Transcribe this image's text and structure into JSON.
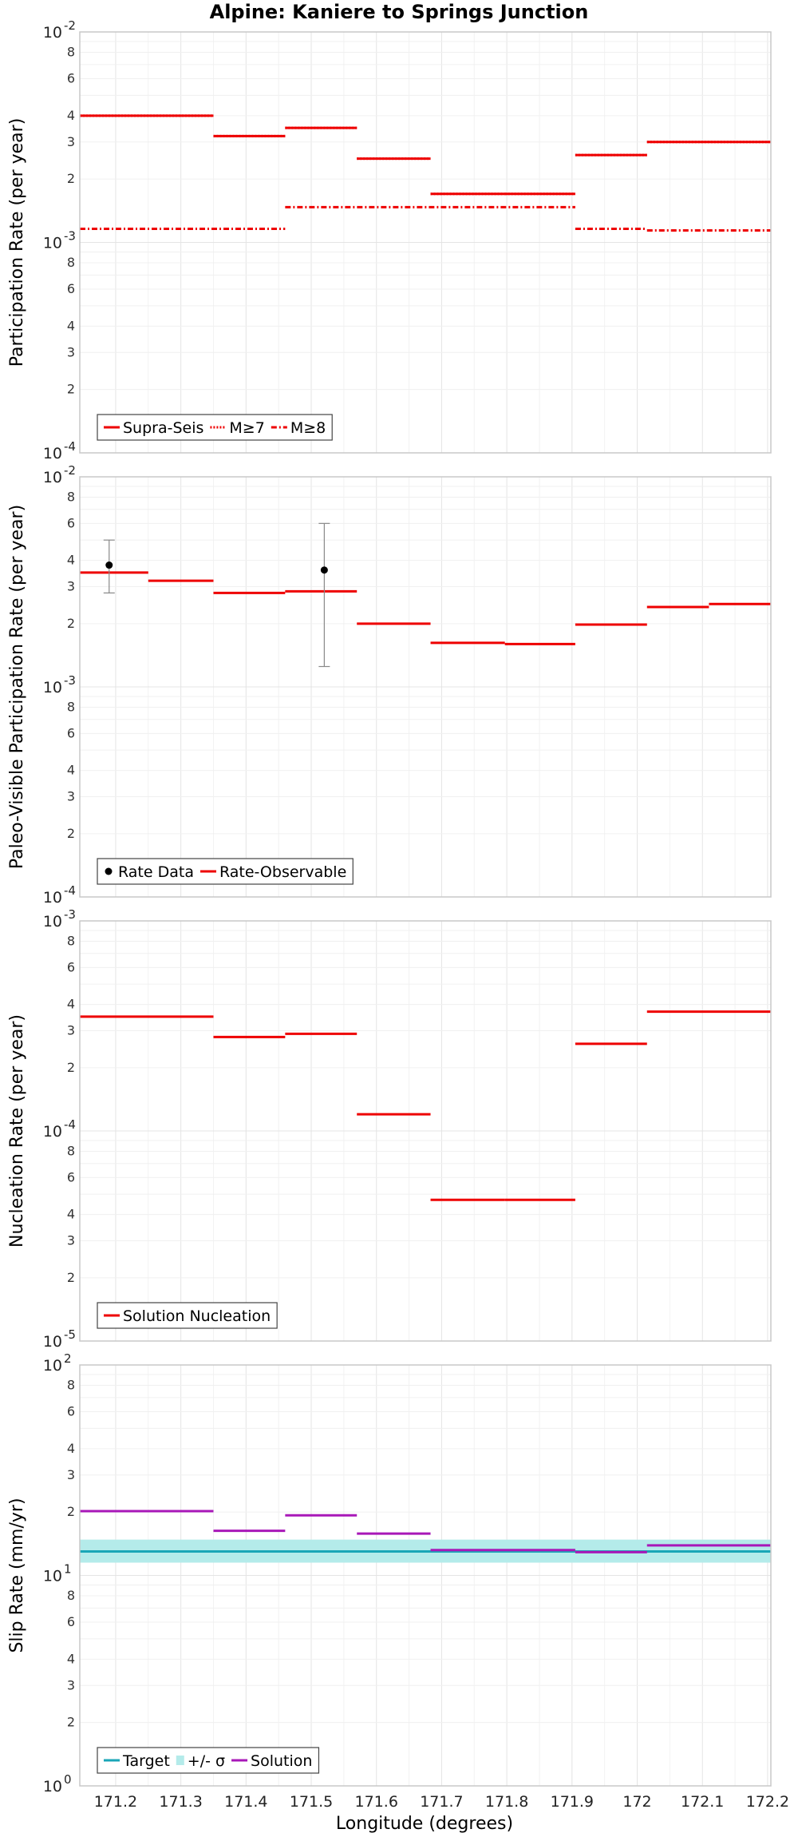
{
  "chart_data": {
    "title": "Alpine: Kaniere to Springs Junction",
    "xlabel": "Longitude (degrees)",
    "x_ticks": [
      171.2,
      171.3,
      171.4,
      171.5,
      171.6,
      171.7,
      171.8,
      171.9,
      172,
      172.1,
      172.2
    ],
    "x_tick_labels": [
      "171.2",
      "171.3",
      "171.4",
      "171.5",
      "171.6",
      "171.7",
      "171.8",
      "171.9",
      "172",
      "172.1",
      "172.2"
    ],
    "xlim": [
      171.145,
      172.205
    ],
    "grid": true,
    "panels": [
      {
        "type": "line",
        "scale": "log",
        "ylabel": "Participation Rate (per year)",
        "ylim_exp": [
          -4,
          -2
        ],
        "legend": {
          "position": "bottom-left",
          "entries": [
            "Supra-Seis",
            "M≥7",
            "M≥8"
          ]
        },
        "series": [
          {
            "name": "Supra-Seis",
            "color": "#ee0000",
            "style": "solid",
            "segments": [
              {
                "x": [
                  171.145,
                  171.35
                ],
                "y": 0.004
              },
              {
                "x": [
                  171.35,
                  171.46
                ],
                "y": 0.0032
              },
              {
                "x": [
                  171.46,
                  171.57
                ],
                "y": 0.0035
              },
              {
                "x": [
                  171.57,
                  171.683
                ],
                "y": 0.0025
              },
              {
                "x": [
                  171.683,
                  171.797
                ],
                "y": 0.0017
              },
              {
                "x": [
                  171.797,
                  171.905
                ],
                "y": 0.0017
              },
              {
                "x": [
                  171.905,
                  172.015
                ],
                "y": 0.0026
              },
              {
                "x": [
                  172.015,
                  172.205
                ],
                "y": 0.003
              }
            ]
          },
          {
            "name": "M≥7",
            "color": "#ee0000",
            "style": "dotted",
            "segments": [
              {
                "x": [
                  171.145,
                  171.35
                ],
                "y": 0.004
              },
              {
                "x": [
                  171.35,
                  171.46
                ],
                "y": 0.0032
              },
              {
                "x": [
                  171.46,
                  171.57
                ],
                "y": 0.0035
              },
              {
                "x": [
                  171.57,
                  171.683
                ],
                "y": 0.0025
              },
              {
                "x": [
                  171.683,
                  171.797
                ],
                "y": 0.0017
              },
              {
                "x": [
                  171.797,
                  171.905
                ],
                "y": 0.0017
              },
              {
                "x": [
                  171.905,
                  172.015
                ],
                "y": 0.0026
              },
              {
                "x": [
                  172.015,
                  172.205
                ],
                "y": 0.003
              }
            ]
          },
          {
            "name": "M≥8",
            "color": "#ee0000",
            "style": "dashdot",
            "segments": [
              {
                "x": [
                  171.145,
                  171.46
                ],
                "y": 0.00116
              },
              {
                "x": [
                  171.46,
                  171.905
                ],
                "y": 0.00147
              },
              {
                "x": [
                  171.905,
                  172.015
                ],
                "y": 0.00116
              },
              {
                "x": [
                  172.015,
                  172.205
                ],
                "y": 0.00114
              }
            ]
          }
        ]
      },
      {
        "type": "line",
        "scale": "log",
        "ylabel": "Paleo-Visible Participation Rate (per year)",
        "ylim_exp": [
          -4,
          -2
        ],
        "legend": {
          "position": "bottom-left",
          "entries": [
            "Rate Data",
            "Rate-Observable"
          ]
        },
        "points": [
          {
            "name": "Rate Data",
            "x": 171.19,
            "y": 0.0038,
            "ylow": 0.0028,
            "yhigh": 0.005
          },
          {
            "name": "Rate Data",
            "x": 171.52,
            "y": 0.0036,
            "ylow": 0.00125,
            "yhigh": 0.006
          }
        ],
        "series": [
          {
            "name": "Rate-Observable",
            "color": "#ee0000",
            "style": "solid",
            "segments": [
              {
                "x": [
                  171.145,
                  171.25
                ],
                "y": 0.0035
              },
              {
                "x": [
                  171.25,
                  171.35
                ],
                "y": 0.0032
              },
              {
                "x": [
                  171.35,
                  171.46
                ],
                "y": 0.0028
              },
              {
                "x": [
                  171.46,
                  171.57
                ],
                "y": 0.00285
              },
              {
                "x": [
                  171.57,
                  171.683
                ],
                "y": 0.002
              },
              {
                "x": [
                  171.683,
                  171.797
                ],
                "y": 0.00162
              },
              {
                "x": [
                  171.797,
                  171.905
                ],
                "y": 0.0016
              },
              {
                "x": [
                  171.905,
                  172.015
                ],
                "y": 0.00198
              },
              {
                "x": [
                  172.015,
                  172.11
                ],
                "y": 0.0024
              },
              {
                "x": [
                  172.11,
                  172.205
                ],
                "y": 0.00248
              }
            ]
          }
        ]
      },
      {
        "type": "line",
        "scale": "log",
        "ylabel": "Nucleation Rate (per year)",
        "ylim_exp": [
          -5,
          -3
        ],
        "legend": {
          "position": "bottom-left",
          "entries": [
            "Solution Nucleation"
          ]
        },
        "series": [
          {
            "name": "Solution Nucleation",
            "color": "#ee0000",
            "style": "solid",
            "segments": [
              {
                "x": [
                  171.145,
                  171.35
                ],
                "y": 0.00035
              },
              {
                "x": [
                  171.35,
                  171.46
                ],
                "y": 0.00028
              },
              {
                "x": [
                  171.46,
                  171.57
                ],
                "y": 0.00029
              },
              {
                "x": [
                  171.57,
                  171.683
                ],
                "y": 0.00012
              },
              {
                "x": [
                  171.683,
                  171.797
                ],
                "y": 4.7e-05
              },
              {
                "x": [
                  171.797,
                  171.905
                ],
                "y": 4.7e-05
              },
              {
                "x": [
                  171.905,
                  172.015
                ],
                "y": 0.00026
              },
              {
                "x": [
                  172.015,
                  172.205
                ],
                "y": 0.00037
              }
            ]
          }
        ]
      },
      {
        "type": "line",
        "scale": "log",
        "ylabel": "Slip Rate (mm/yr)",
        "ylim_exp": [
          0,
          2
        ],
        "legend": {
          "position": "bottom-left",
          "entries": [
            "Target",
            "+/- σ",
            "Solution"
          ]
        },
        "band": {
          "name": "+/- σ",
          "color": "#b4ebea",
          "ylow": 11.5,
          "yhigh": 14.8,
          "x": [
            171.145,
            172.205
          ]
        },
        "series": [
          {
            "name": "Target",
            "color": "#1aa6b7",
            "style": "solid",
            "segments": [
              {
                "x": [
                  171.145,
                  172.205
                ],
                "y": 13.0
              }
            ]
          },
          {
            "name": "Solution",
            "color": "#a818b8",
            "style": "solid",
            "segments": [
              {
                "x": [
                  171.145,
                  171.35
                ],
                "y": 20.2
              },
              {
                "x": [
                  171.35,
                  171.46
                ],
                "y": 16.3
              },
              {
                "x": [
                  171.46,
                  171.57
                ],
                "y": 19.3
              },
              {
                "x": [
                  171.57,
                  171.683
                ],
                "y": 15.8
              },
              {
                "x": [
                  171.683,
                  171.905
                ],
                "y": 13.2
              },
              {
                "x": [
                  171.905,
                  172.015
                ],
                "y": 12.9
              },
              {
                "x": [
                  172.015,
                  172.205
                ],
                "y": 13.9
              }
            ]
          }
        ]
      }
    ]
  }
}
